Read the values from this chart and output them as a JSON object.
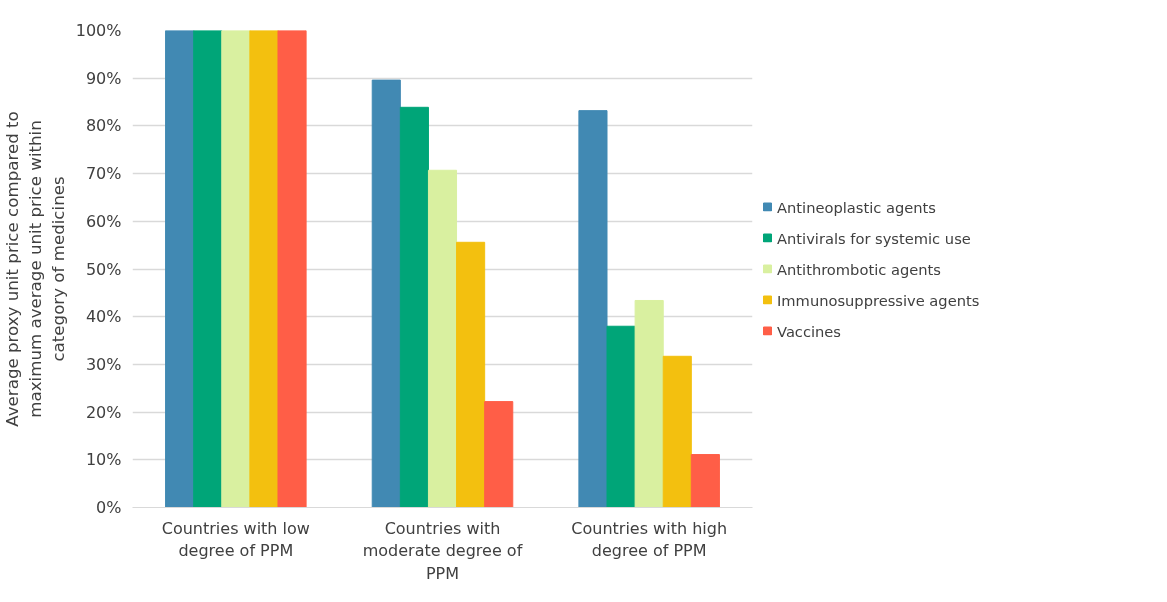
{
  "chart_data": {
    "type": "bar",
    "ylabel": "Average proxy unit price compared to\nmaximum average unit price within\ncategory of medicines",
    "categories": [
      "Countries with low\ndegree of PPM",
      "Countries with\nmoderate degree of\nPPM",
      "Countries with high\ndegree of PPM"
    ],
    "series": [
      {
        "name": "Antineoplastic agents",
        "color": "#4189b3",
        "values": [
          100,
          89.6,
          83.2
        ]
      },
      {
        "name": "Antivirals for systemic use",
        "color": "#00a578",
        "values": [
          100,
          83.9,
          38.0
        ]
      },
      {
        "name": "Antithrombotic agents",
        "color": "#d9f0a0",
        "values": [
          100,
          70.7,
          43.4
        ]
      },
      {
        "name": "Immunosuppressive agents",
        "color": "#f3c00f",
        "values": [
          100,
          55.6,
          31.7
        ]
      },
      {
        "name": "Vaccines",
        "color": "#ff5e47",
        "values": [
          100,
          22.2,
          11.1
        ]
      }
    ],
    "ylim": [
      0,
      100
    ],
    "yticks": [
      {
        "value": 0,
        "label": "0%"
      },
      {
        "value": 10,
        "label": "10%"
      },
      {
        "value": 20,
        "label": "20%"
      },
      {
        "value": 30,
        "label": "30%"
      },
      {
        "value": 40,
        "label": "40%"
      },
      {
        "value": 50,
        "label": "50%"
      },
      {
        "value": 60,
        "label": "60%"
      },
      {
        "value": 70,
        "label": "70%"
      },
      {
        "value": 80,
        "label": "80%"
      },
      {
        "value": 90,
        "label": "90%"
      },
      {
        "value": 100,
        "label": "100%"
      }
    ],
    "grid": "y",
    "legend": "right"
  }
}
